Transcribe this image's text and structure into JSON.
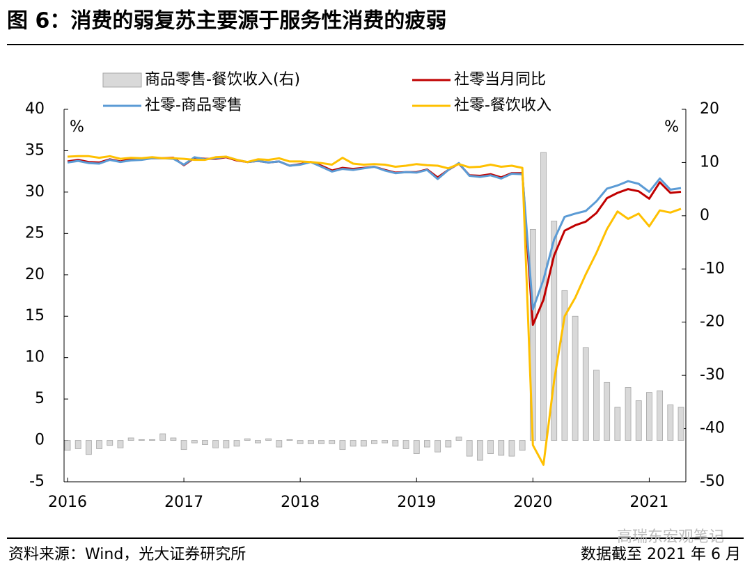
{
  "chart_data": {
    "type": "bar_line",
    "title": "图 6：消费的弱复苏主要源于服务性消费的疲弱",
    "source": "资料来源：Wind，光大证券研究所",
    "note": "数据截至 2021 年 6 月",
    "watermark": "高瑞东宏观笔记",
    "y_unit": "%",
    "y2_unit": "%",
    "categories": [
      "2016",
      null,
      null,
      null,
      null,
      null,
      null,
      null,
      null,
      null,
      null,
      "2017",
      null,
      null,
      null,
      null,
      null,
      null,
      null,
      null,
      null,
      null,
      "2018",
      null,
      null,
      null,
      null,
      null,
      null,
      null,
      null,
      null,
      null,
      "2019",
      null,
      null,
      null,
      null,
      null,
      null,
      null,
      null,
      null,
      null,
      "2020",
      null,
      null,
      null,
      null,
      null,
      null,
      null,
      null,
      null,
      null,
      "2021",
      null,
      null,
      null
    ],
    "ylim": [
      -5,
      40
    ],
    "yticks": [
      -5,
      0,
      5,
      10,
      15,
      20,
      25,
      30,
      35,
      40
    ],
    "y2lim": [
      -50,
      20
    ],
    "y2ticks": [
      -50,
      -40,
      -30,
      -20,
      -10,
      0,
      10,
      20
    ],
    "legend": "top",
    "series": [
      {
        "name": "商品零售-餐饮收入(右)",
        "kind": "bar",
        "color": "#d9d9d9",
        "values": [
          -1.2,
          -1.0,
          -1.7,
          -1.0,
          -0.6,
          -0.9,
          0.3,
          0.1,
          0.1,
          0.8,
          0.3,
          -1.1,
          -0.3,
          -0.5,
          -0.9,
          -0.9,
          -0.7,
          0.2,
          -0.3,
          0.2,
          -0.8,
          0.1,
          -0.4,
          -0.4,
          -0.4,
          -0.4,
          -1.1,
          -0.7,
          -0.7,
          -0.4,
          -0.3,
          -0.7,
          -1.0,
          -1.6,
          -0.8,
          -1.4,
          -0.8,
          0.4,
          -1.9,
          -2.4,
          -1.6,
          -1.8,
          -1.9,
          -1.2,
          25.5,
          34.8,
          26.5,
          18.1,
          15.0,
          11.2,
          8.5,
          7.0,
          4.0,
          6.4,
          4.8,
          5.8,
          6.0,
          4.3,
          4.0
        ]
      },
      {
        "name": "社零当月同比",
        "kind": "line",
        "axis": "y2",
        "color": "#c00000",
        "values": [
          10.2,
          10.5,
          10.1,
          10.0,
          10.6,
          10.2,
          10.6,
          10.7,
          10.8,
          10.8,
          10.9,
          9.5,
          10.9,
          10.7,
          10.7,
          11.0,
          10.4,
          10.1,
          10.3,
          10.0,
          10.2,
          9.4,
          9.7,
          10.1,
          9.4,
          8.5,
          9.0,
          8.8,
          9.0,
          9.2,
          8.6,
          8.1,
          8.2,
          8.2,
          8.7,
          7.2,
          8.6,
          9.8,
          7.6,
          7.5,
          7.8,
          7.2,
          8.0,
          8.0,
          -20.5,
          -15.8,
          -7.5,
          -2.8,
          -1.8,
          -1.1,
          0.5,
          3.3,
          4.3,
          5.0,
          4.6,
          3.2,
          6.3,
          4.3,
          4.5
        ]
      },
      {
        "name": "社零-商品零售",
        "kind": "line",
        "axis": "y2",
        "color": "#5b9bd5",
        "values": [
          10.0,
          10.3,
          9.9,
          9.8,
          10.5,
          10.1,
          10.4,
          10.5,
          10.8,
          10.8,
          10.7,
          9.6,
          11.0,
          10.6,
          10.8,
          11.1,
          10.5,
          10.1,
          10.3,
          10.0,
          10.2,
          9.4,
          9.6,
          10.1,
          9.2,
          8.3,
          8.8,
          8.6,
          8.9,
          9.2,
          8.5,
          8.0,
          8.2,
          8.1,
          8.6,
          6.9,
          8.6,
          9.9,
          7.5,
          7.3,
          7.6,
          7.0,
          7.9,
          7.8,
          -17.6,
          -12.0,
          -4.5,
          -0.2,
          0.4,
          0.9,
          2.7,
          5.1,
          5.7,
          6.5,
          6.0,
          4.5,
          7.0,
          4.9,
          5.2
        ]
      },
      {
        "name": "社零-餐饮收入",
        "kind": "line",
        "axis": "y2",
        "color": "#ffc000",
        "values": [
          11.1,
          11.2,
          11.2,
          10.9,
          11.2,
          10.7,
          10.9,
          10.8,
          11.0,
          10.8,
          10.8,
          10.7,
          10.5,
          10.5,
          11.0,
          11.1,
          10.5,
          10.1,
          10.6,
          10.5,
          10.8,
          10.2,
          10.2,
          10.1,
          9.9,
          9.6,
          10.9,
          9.8,
          9.6,
          9.7,
          9.6,
          9.2,
          9.4,
          9.7,
          9.5,
          9.4,
          8.9,
          9.7,
          9.1,
          9.2,
          9.6,
          9.2,
          9.4,
          9.0,
          -43.1,
          -46.8,
          -31.1,
          -18.9,
          -15.4,
          -11.0,
          -7.0,
          -2.5,
          0.8,
          -0.6,
          0.4,
          -2.0,
          1.0,
          0.6,
          1.3
        ]
      }
    ]
  }
}
